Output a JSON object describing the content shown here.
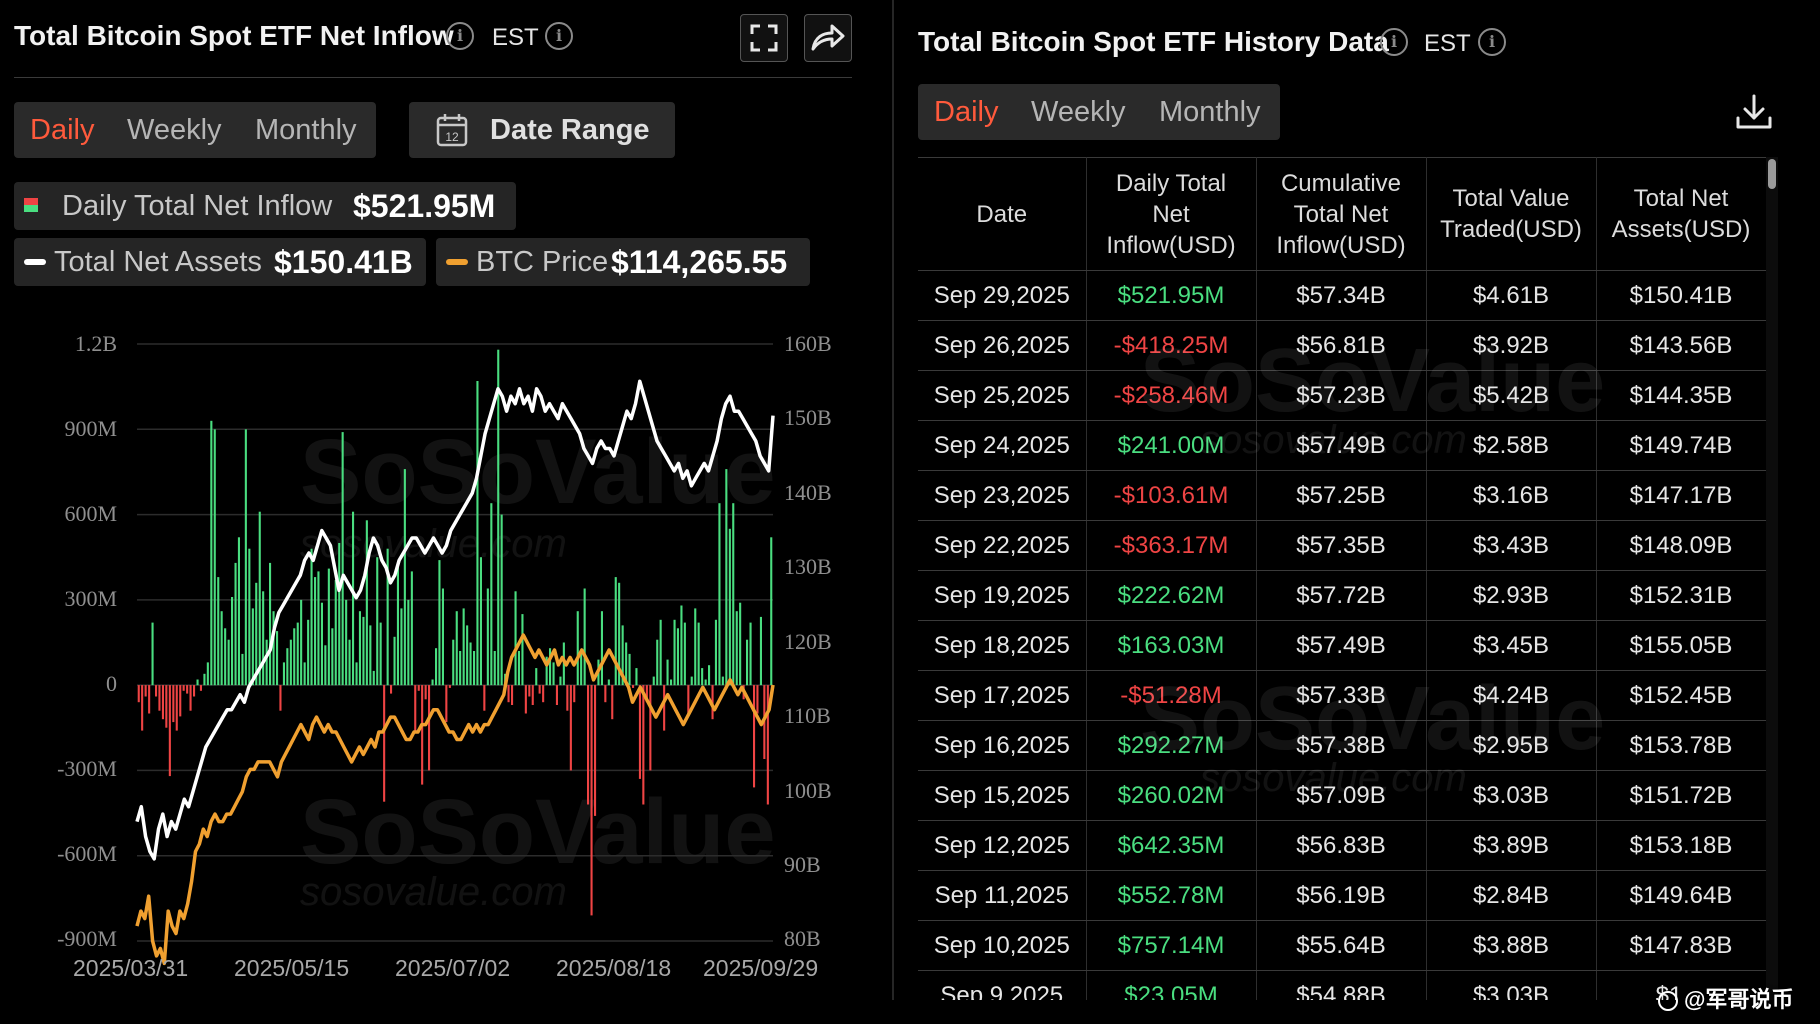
{
  "left_panel": {
    "title": "Total Bitcoin Spot ETF Net Inflow",
    "timezone": "EST",
    "tabs": [
      "Daily",
      "Weekly",
      "Monthly"
    ],
    "active_tab": "Daily",
    "date_range_label": "Date Range",
    "calendar_icon_day": "12",
    "legend": {
      "inflow_label": "Daily Total Net Inflow",
      "inflow_value": "$521.95M",
      "assets_label": "Total Net Assets",
      "assets_value": "$150.41B",
      "btc_label": "BTC Price",
      "btc_value": "$114,265.55"
    },
    "icons": [
      "info-icon",
      "fullscreen-icon",
      "share-icon",
      "calendar-icon"
    ]
  },
  "right_panel": {
    "title": "Total Bitcoin Spot ETF History Data",
    "timezone": "EST",
    "tabs": [
      "Daily",
      "Weekly",
      "Monthly"
    ],
    "active_tab": "Daily",
    "columns": [
      "Date",
      "Daily Total Net Inflow(USD)",
      "Cumulative Total Net Inflow(USD)",
      "Total Value Traded(USD)",
      "Total Net Assets(USD)"
    ],
    "rows": [
      [
        "Sep 29,2025",
        "$521.95M",
        "$57.34B",
        "$4.61B",
        "$150.41B"
      ],
      [
        "Sep 26,2025",
        "-$418.25M",
        "$56.81B",
        "$3.92B",
        "$143.56B"
      ],
      [
        "Sep 25,2025",
        "-$258.46M",
        "$57.23B",
        "$5.42B",
        "$144.35B"
      ],
      [
        "Sep 24,2025",
        "$241.00M",
        "$57.49B",
        "$2.58B",
        "$149.74B"
      ],
      [
        "Sep 23,2025",
        "-$103.61M",
        "$57.25B",
        "$3.16B",
        "$147.17B"
      ],
      [
        "Sep 22,2025",
        "-$363.17M",
        "$57.35B",
        "$3.43B",
        "$148.09B"
      ],
      [
        "Sep 19,2025",
        "$222.62M",
        "$57.72B",
        "$2.93B",
        "$152.31B"
      ],
      [
        "Sep 18,2025",
        "$163.03M",
        "$57.49B",
        "$3.45B",
        "$155.05B"
      ],
      [
        "Sep 17,2025",
        "-$51.28M",
        "$57.33B",
        "$4.24B",
        "$152.45B"
      ],
      [
        "Sep 16,2025",
        "$292.27M",
        "$57.38B",
        "$2.95B",
        "$153.78B"
      ],
      [
        "Sep 15,2025",
        "$260.02M",
        "$57.09B",
        "$3.03B",
        "$151.72B"
      ],
      [
        "Sep 12,2025",
        "$642.35M",
        "$56.83B",
        "$3.89B",
        "$153.18B"
      ],
      [
        "Sep 11,2025",
        "$552.78M",
        "$56.19B",
        "$2.84B",
        "$149.64B"
      ],
      [
        "Sep 10,2025",
        "$757.14M",
        "$55.64B",
        "$3.88B",
        "$147.83B"
      ],
      [
        "Sep 9,2025",
        "$23.05M",
        "$54.88B",
        "$3.03B",
        "$1…"
      ]
    ]
  },
  "watermark": {
    "brand": "SoSoValue",
    "url": "sosovalue.com"
  },
  "credit": "@军哥说币",
  "colors": {
    "green": "#4ade80",
    "red": "#ef4444",
    "orange": "#f0a030",
    "white_line": "#ffffff",
    "accent": "#ff5a3c"
  },
  "chart_data": {
    "type": "bar",
    "title": "Total Bitcoin Spot ETF Net Inflow",
    "x_tick_labels": [
      "2025/03/31",
      "2025/05/15",
      "2025/07/02",
      "2025/08/18",
      "2025/09/29"
    ],
    "y_left_ticks": [
      "1.2B",
      "900M",
      "600M",
      "300M",
      "0",
      "-300M",
      "-600M",
      "-900M"
    ],
    "y_left_range": [
      -900,
      1200
    ],
    "y_left_unit": "M USD",
    "y_right_ticks": [
      "160B",
      "150B",
      "140B",
      "130B",
      "120B",
      "110B",
      "100B",
      "90B",
      "80B"
    ],
    "y_right_range": [
      80,
      160
    ],
    "y_right_unit": "B USD",
    "series": [
      {
        "name": "Daily Total Net Inflow",
        "type": "bar",
        "axis": "left",
        "values": [
          -60,
          -160,
          -40,
          -100,
          220,
          -40,
          -90,
          -120,
          -150,
          -320,
          -130,
          -160,
          -110,
          -20,
          -30,
          -90,
          -40,
          20,
          -20,
          40,
          80,
          930,
          900,
          380,
          260,
          200,
          160,
          310,
          430,
          520,
          110,
          900,
          480,
          270,
          360,
          610,
          330,
          160,
          430,
          260,
          190,
          -90,
          80,
          130,
          160,
          200,
          220,
          300,
          80,
          230,
          480,
          380,
          400,
          290,
          140,
          410,
          200,
          370,
          500,
          890,
          300,
          160,
          610,
          80,
          260,
          240,
          580,
          210,
          50,
          450,
          220,
          -410,
          480,
          -30,
          170,
          430,
          270,
          760,
          300,
          400,
          -160,
          -20,
          -350,
          -50,
          -300,
          20,
          130,
          440,
          340,
          -130,
          -10,
          160,
          260,
          120,
          270,
          210,
          150,
          120,
          1070,
          450,
          -90,
          340,
          640,
          120,
          1180,
          600,
          40,
          -60,
          -70,
          330,
          120,
          250,
          -100,
          -40,
          -70,
          60,
          -30,
          -60,
          100,
          130,
          80,
          -70,
          30,
          150,
          -90,
          -300,
          -60,
          260,
          110,
          340,
          -420,
          -810,
          -460,
          90,
          260,
          -60,
          20,
          -120,
          380,
          360,
          210,
          150,
          110,
          -10,
          60,
          -330,
          -420,
          -60,
          -300,
          30,
          160,
          230,
          -160,
          90,
          20,
          230,
          200,
          280,
          220,
          -100,
          30,
          270,
          220,
          60,
          20,
          70,
          -120,
          230,
          640,
          30,
          760,
          550,
          640,
          260,
          290,
          -50,
          160,
          220,
          -360,
          -100,
          240,
          -260,
          -420,
          520
        ]
      },
      {
        "name": "Total Net Assets",
        "type": "line",
        "axis": "right",
        "values": [
          96,
          98,
          94,
          92,
          91,
          95,
          97,
          94,
          96,
          95,
          97,
          99,
          98,
          100,
          102,
          104,
          106,
          107,
          108,
          109,
          110,
          111,
          111,
          112,
          113,
          112,
          114,
          115,
          116,
          117,
          118,
          119,
          122,
          124,
          125,
          126,
          127,
          128,
          129,
          131,
          132,
          131,
          133,
          135,
          134,
          133,
          130,
          127,
          129,
          128,
          127,
          126,
          127,
          129,
          132,
          134,
          133,
          131,
          130,
          128,
          129,
          131,
          132,
          133,
          134,
          134,
          133,
          132,
          133,
          134,
          133,
          132,
          133,
          135,
          136,
          137,
          138,
          139,
          140,
          142,
          145,
          148,
          150,
          152,
          154,
          153,
          151,
          153,
          152,
          154,
          152,
          153,
          151,
          154,
          153,
          151,
          152,
          151,
          150,
          152,
          151,
          150,
          149,
          148,
          146,
          145,
          144,
          146,
          147,
          146,
          146,
          145,
          147,
          149,
          151,
          150,
          152,
          155,
          153,
          151,
          149,
          147,
          146,
          145,
          144,
          143,
          144,
          142,
          143,
          141,
          142,
          143,
          144,
          143,
          145,
          147,
          150,
          152,
          153,
          151,
          151,
          150,
          149,
          148,
          147,
          145,
          144,
          143,
          150.4
        ]
      },
      {
        "name": "BTC Price",
        "type": "line",
        "axis": "right",
        "values": [
          82,
          84,
          83,
          86,
          80,
          78,
          79,
          77,
          84,
          82,
          81,
          84,
          83,
          85,
          88,
          92,
          93,
          95,
          94,
          96,
          97,
          96,
          96,
          97,
          97,
          98,
          99,
          100,
          102,
          103,
          103,
          104,
          104,
          104,
          104,
          103,
          102,
          104,
          105,
          106,
          107,
          108,
          109,
          108,
          107,
          109,
          110,
          109,
          108,
          109,
          108,
          108,
          107,
          106,
          105,
          104,
          105,
          106,
          105,
          106,
          107,
          106,
          108,
          108,
          109,
          110,
          110,
          109,
          108,
          107,
          107,
          108,
          108,
          109,
          109,
          110,
          111,
          111,
          110,
          109,
          108,
          108,
          107,
          107,
          108,
          109,
          108,
          109,
          108,
          109,
          109,
          110,
          111,
          112,
          113,
          116,
          118,
          119,
          120,
          121,
          120,
          119,
          118,
          119,
          118,
          117,
          118,
          119,
          117,
          118,
          117,
          118,
          117,
          118,
          119,
          118,
          117,
          115,
          116,
          117,
          118,
          119,
          118,
          117,
          116,
          115,
          114,
          112,
          113,
          114,
          113,
          112,
          111,
          110,
          111,
          112,
          113,
          112,
          111,
          110,
          109,
          110,
          111,
          112,
          113,
          114,
          113,
          112,
          111,
          112,
          113,
          114,
          115,
          114,
          113,
          114,
          113,
          112,
          111,
          110,
          109,
          110,
          111,
          114.3
        ]
      }
    ]
  }
}
